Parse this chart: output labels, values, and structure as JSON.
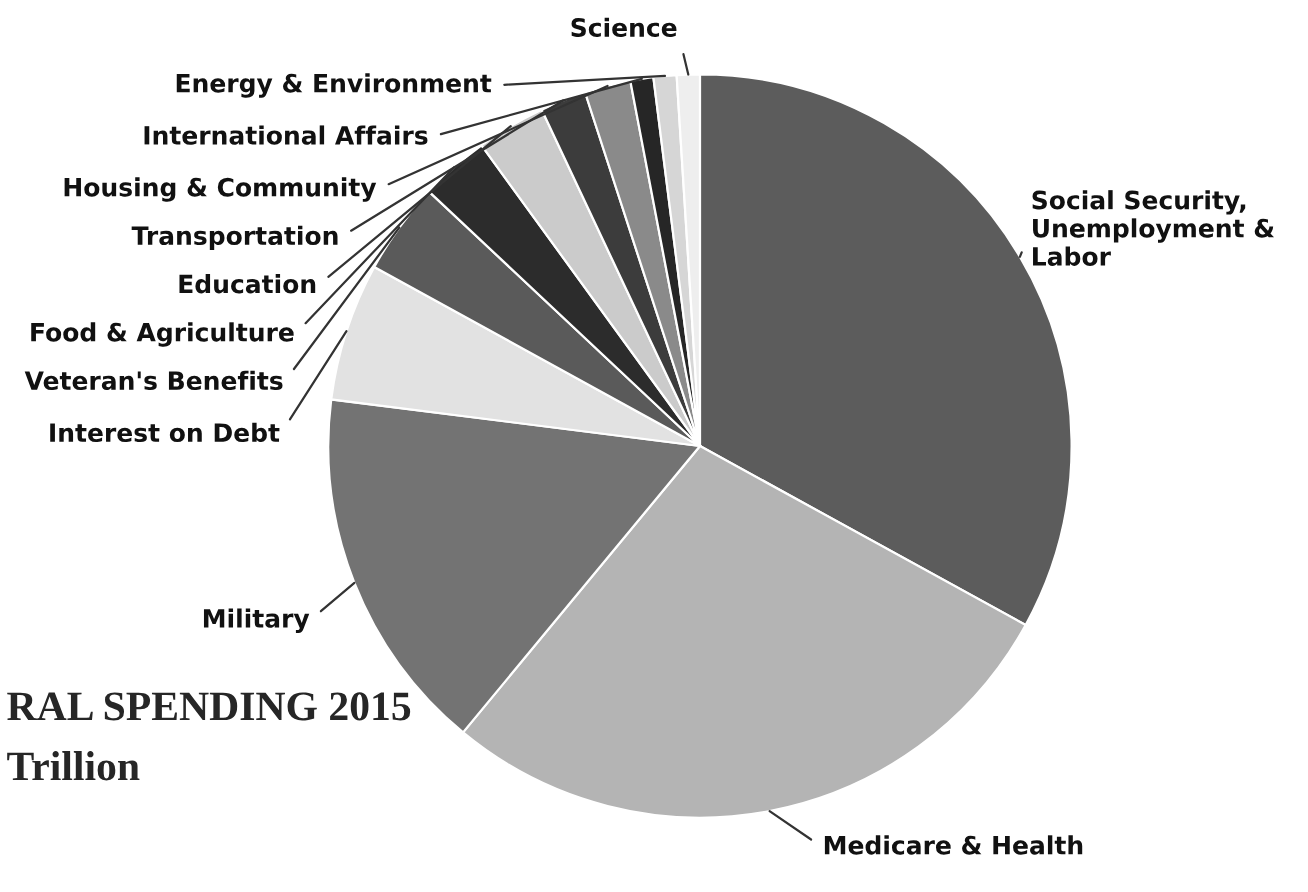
{
  "chart_data": {
    "type": "pie",
    "title": "RAL SPENDING 2015",
    "subtitle": "Trillion",
    "categories": [
      "Social Security, Unemployment & Labor",
      "Medicare & Health",
      "Military",
      "Interest on Debt",
      "Veteran's Benefits",
      "Food & Agriculture",
      "Education",
      "Transportation",
      "Housing & Community",
      "International Affairs",
      "Energy & Environment",
      "Science"
    ],
    "values": [
      33,
      28,
      16,
      6,
      4,
      3,
      3,
      2,
      2,
      1,
      1,
      1
    ],
    "colors": [
      "#5c5c5c",
      "#b4b4b4",
      "#737373",
      "#e2e2e2",
      "#5a5a5a",
      "#2c2c2c",
      "#cbcbcb",
      "#3c3c3c",
      "#8a8a8a",
      "#262626",
      "#d6d6d6",
      "#eeeeee"
    ]
  }
}
